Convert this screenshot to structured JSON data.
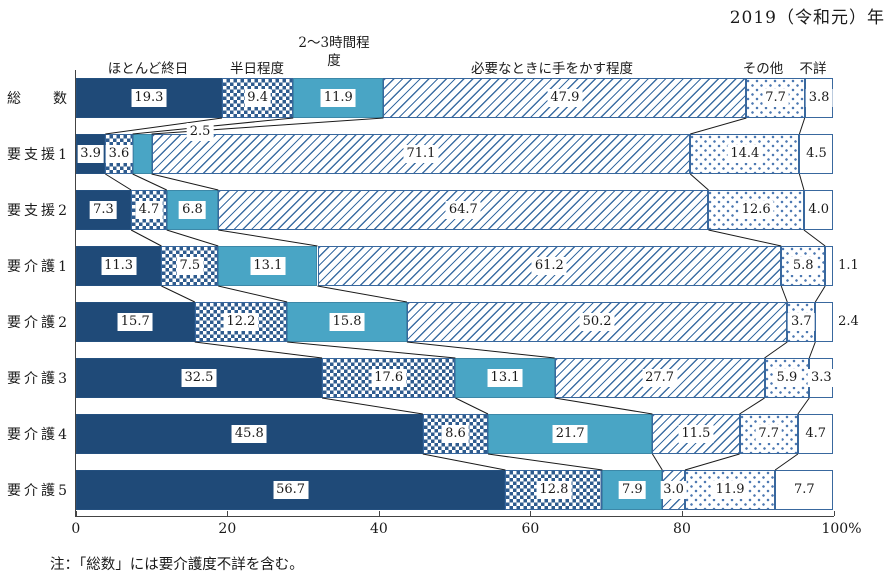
{
  "header": {
    "title": "2019（令和元）年"
  },
  "note": "注：「総数」には要介護度不詳を含む。",
  "chart_data": {
    "type": "bar",
    "stacked": true,
    "orientation": "horizontal",
    "unit": "%",
    "xlim": [
      0,
      100
    ],
    "x_ticks": [
      0,
      20,
      40,
      60,
      80,
      100
    ],
    "x_tick_labels": [
      "0",
      "20",
      "40",
      "60",
      "80",
      "100%"
    ],
    "grid": false,
    "legend_position": "top",
    "series_labels": [
      "ほとんど終日",
      "半日程度",
      "2～3時間程度",
      "必要なときに手をかす程度",
      "その他",
      "不詳"
    ],
    "patterns": [
      "solid-navy",
      "checkerboard",
      "solid-lightblue",
      "diagonal-hatch",
      "dots",
      "plain-white"
    ],
    "colors": {
      "navy": "#1F4A78",
      "lightblue": "#49A5C5",
      "pattern_blue": "#2E5B8E",
      "hatch_blue": "#3C6EA3",
      "dot_blue": "#4E79B2",
      "segment_border": "#39689E",
      "connector_line": "#1a1a1a"
    },
    "categories": [
      "総数",
      "要支援1",
      "要支援2",
      "要介護1",
      "要介護2",
      "要介護3",
      "要介護4",
      "要介護5"
    ],
    "rows": [
      {
        "label": "総数",
        "values": [
          19.3,
          9.4,
          11.9,
          47.9,
          7.7,
          3.8
        ]
      },
      {
        "label": "要支援1",
        "values": [
          3.9,
          3.6,
          2.5,
          71.1,
          14.4,
          4.5
        ]
      },
      {
        "label": "要支援2",
        "values": [
          7.3,
          4.7,
          6.8,
          64.7,
          12.6,
          4.0
        ]
      },
      {
        "label": "要介護1",
        "values": [
          11.3,
          7.5,
          13.1,
          61.2,
          5.8,
          1.1
        ]
      },
      {
        "label": "要介護2",
        "values": [
          15.7,
          12.2,
          15.8,
          50.2,
          3.7,
          2.4
        ]
      },
      {
        "label": "要介護3",
        "values": [
          32.5,
          17.6,
          13.1,
          27.7,
          5.9,
          3.3
        ]
      },
      {
        "label": "要介護4",
        "values": [
          45.8,
          8.6,
          21.7,
          11.5,
          7.7,
          4.7
        ]
      },
      {
        "label": "要介護5",
        "values": [
          56.7,
          12.8,
          7.9,
          3.0,
          11.9,
          7.7
        ]
      }
    ],
    "label_overrides": {
      "1-2": "above-right",
      "3-5": "outside-right",
      "4-5": "outside-right"
    }
  }
}
